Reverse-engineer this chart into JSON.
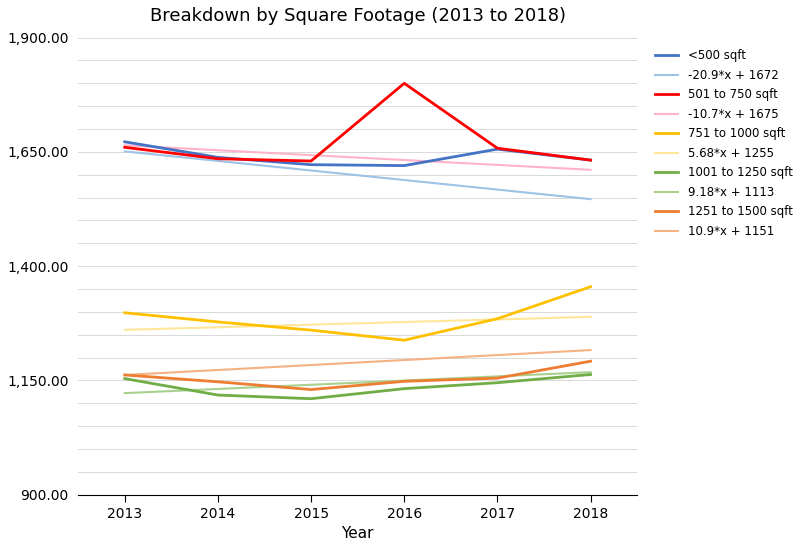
{
  "title": "Breakdown by Square Footage (2013 to 2018)",
  "xlabel": "Year",
  "ylabel": "",
  "years": [
    2013,
    2014,
    2015,
    2016,
    2017,
    2018
  ],
  "series": [
    {
      "label": "<500 sqft",
      "color": "#4472C4",
      "linewidth": 2.0,
      "zorder": 5,
      "values": [
        1672,
        1638,
        1622,
        1620,
        1656,
        1632
      ]
    },
    {
      "label": "-20.9*x + 1672",
      "color": "#9DC3E6",
      "linewidth": 1.5,
      "zorder": 4,
      "trend": {
        "slope": -20.9,
        "intercept": 1672
      }
    },
    {
      "label": "501 to 750 sqft",
      "color": "#FF0000",
      "linewidth": 2.0,
      "zorder": 5,
      "values": [
        1660,
        1635,
        1630,
        1800,
        1658,
        1632
      ]
    },
    {
      "label": "-10.7*x + 1675",
      "color": "#FFB3C8",
      "linewidth": 1.5,
      "zorder": 4,
      "trend": {
        "slope": -10.7,
        "intercept": 1675
      }
    },
    {
      "label": "751 to 1000 sqft",
      "color": "#FFC000",
      "linewidth": 2.0,
      "zorder": 5,
      "values": [
        1298,
        1278,
        1260,
        1238,
        1285,
        1355
      ]
    },
    {
      "label": "5.68*x + 1255",
      "color": "#FFE699",
      "linewidth": 1.5,
      "zorder": 4,
      "trend": {
        "slope": 5.68,
        "intercept": 1255
      }
    },
    {
      "label": "1001 to 1250 sqft",
      "color": "#70AD47",
      "linewidth": 2.0,
      "zorder": 5,
      "values": [
        1154,
        1118,
        1110,
        1132,
        1145,
        1163
      ]
    },
    {
      "label": "9.18*x + 1113",
      "color": "#A9D18E",
      "linewidth": 1.5,
      "zorder": 4,
      "trend": {
        "slope": 9.18,
        "intercept": 1113
      }
    },
    {
      "label": "1251 to 1500 sqft",
      "color": "#ED7D31",
      "linewidth": 2.0,
      "zorder": 5,
      "values": [
        1162,
        1147,
        1130,
        1148,
        1155,
        1192
      ]
    },
    {
      "label": "10.9*x + 1151",
      "color": "#F4B183",
      "linewidth": 1.5,
      "zorder": 4,
      "trend": {
        "slope": 10.9,
        "intercept": 1151
      }
    }
  ],
  "ylim": [
    900,
    1900
  ],
  "labeled_yticks": [
    900,
    1150,
    1400,
    1650,
    1900
  ],
  "num_gridlines": 20,
  "background_color": "#FFFFFF",
  "grid_color": "#D9D9D9"
}
